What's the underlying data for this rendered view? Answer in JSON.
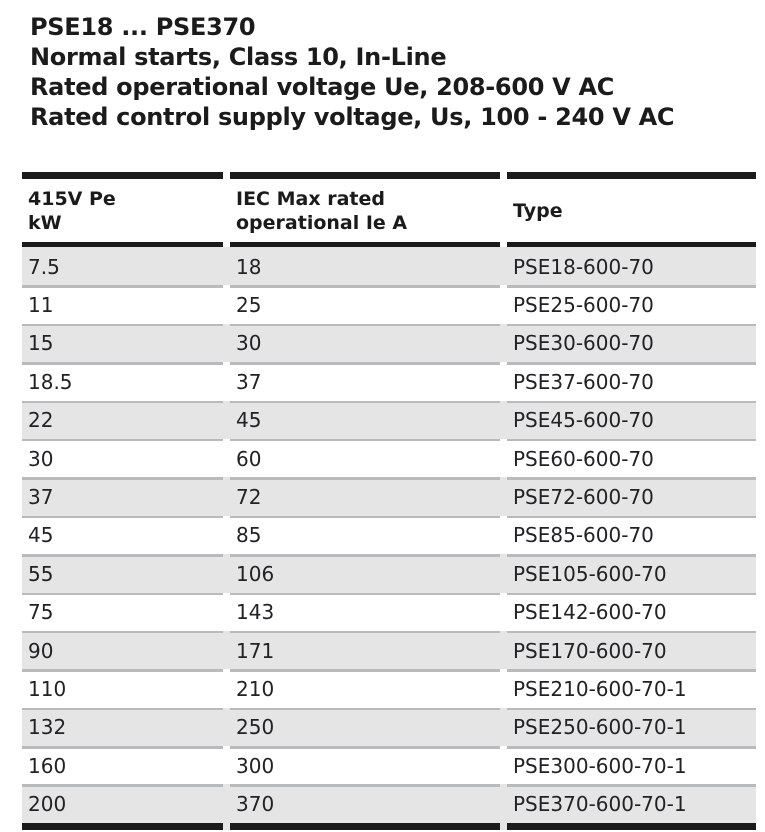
{
  "title": {
    "line1": "PSE18 ... PSE370",
    "line2": "Normal starts, Class 10, In-Line",
    "line3": "Rated operational voltage Ue, 208-600 V AC",
    "line4": "Rated control supply voltage, Us, 100 - 240 V AC"
  },
  "table": {
    "headers": {
      "col1": "415V Pe\nkW",
      "col2": "IEC Max rated\noperational Ie A",
      "col3": "Type"
    },
    "rows": [
      {
        "kw": "7.5",
        "ie": "18",
        "type": "PSE18-600-70"
      },
      {
        "kw": "11",
        "ie": "25",
        "type": "PSE25-600-70"
      },
      {
        "kw": "15",
        "ie": "30",
        "type": "PSE30-600-70"
      },
      {
        "kw": "18.5",
        "ie": "37",
        "type": "PSE37-600-70"
      },
      {
        "kw": "22",
        "ie": "45",
        "type": "PSE45-600-70"
      },
      {
        "kw": "30",
        "ie": "60",
        "type": "PSE60-600-70"
      },
      {
        "kw": "37",
        "ie": "72",
        "type": "PSE72-600-70"
      },
      {
        "kw": "45",
        "ie": "85",
        "type": "PSE85-600-70"
      },
      {
        "kw": "55",
        "ie": "106",
        "type": "PSE105-600-70"
      },
      {
        "kw": "75",
        "ie": "143",
        "type": "PSE142-600-70"
      },
      {
        "kw": "90",
        "ie": "171",
        "type": "PSE170-600-70"
      },
      {
        "kw": "110",
        "ie": "210",
        "type": "PSE210-600-70-1"
      },
      {
        "kw": "132",
        "ie": "250",
        "type": "PSE250-600-70-1"
      },
      {
        "kw": "160",
        "ie": "300",
        "type": "PSE300-600-70-1"
      },
      {
        "kw": "200",
        "ie": "370",
        "type": "PSE370-600-70-1"
      }
    ]
  },
  "colors": {
    "text": "#1b1b1b",
    "bar_black": "#1b1b1b",
    "row_shade": "#e5e5e6",
    "row_separator": "#b9babc",
    "background": "#ffffff"
  }
}
